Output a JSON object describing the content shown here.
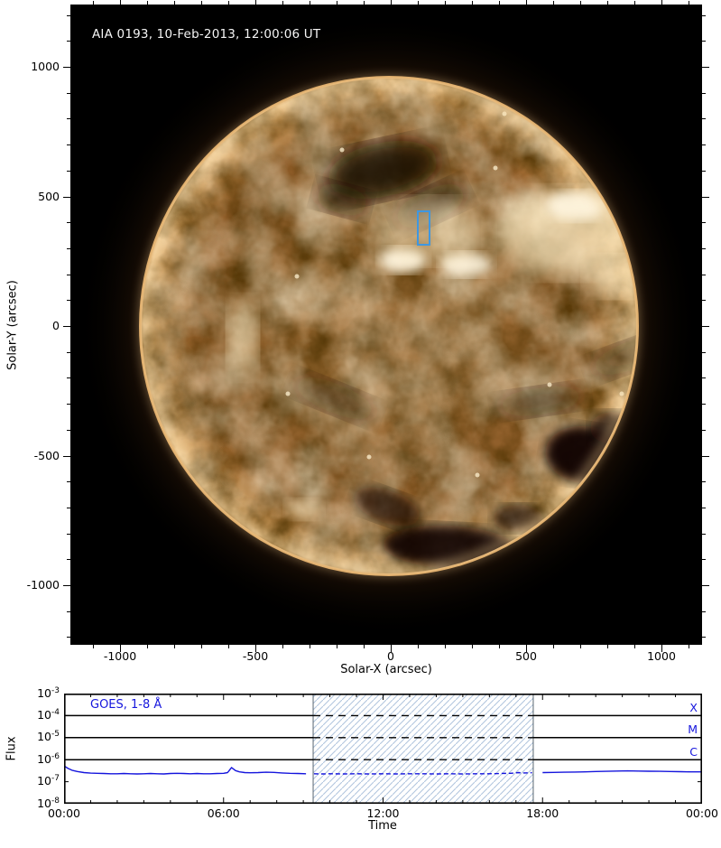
{
  "solar_map": {
    "title": "AIA 0193, 10-Feb-2013, 12:00:06 UT",
    "xlabel": "Solar-X (arcsec)",
    "ylabel": "Solar-Y (arcsec)",
    "x_ticks": [
      -1000,
      -500,
      0,
      500,
      1000
    ],
    "y_ticks": [
      1000,
      500,
      0,
      -500,
      -1000
    ],
    "minor_step_arcsec": 100,
    "x_range_arcsec": [
      -1183,
      1150
    ],
    "y_range_arcsec": [
      -1230,
      1241
    ],
    "annotation_box": {
      "color": "#3f97e0",
      "solar_x": [
        97,
        140
      ],
      "solar_y": [
        317,
        446
      ]
    },
    "palette": {
      "disk_mid": "#9a6a33",
      "limb_bright": "#eec88f",
      "coronal_hole": "#0a0502",
      "corona_glow": "#8a4d16",
      "background": "#000000",
      "title_text": "#f5f5f5"
    }
  },
  "goes": {
    "legend": "GOES, 1-8 Å",
    "ylabel": "Flux",
    "xlabel": "Time",
    "x_tick_labels": [
      "00:00",
      "06:00",
      "12:00",
      "18:00",
      "00:00"
    ],
    "x_tick_hours": [
      0,
      6,
      12,
      18,
      24
    ],
    "y_exponents": [
      -3,
      -4,
      -5,
      -6,
      -7,
      -8
    ],
    "flare_classes": [
      {
        "label": "X",
        "level": 0.0001
      },
      {
        "label": "M",
        "level": 1e-05
      },
      {
        "label": "C",
        "level": 1e-06
      }
    ],
    "hatch_hours": [
      9.37,
      17.65
    ],
    "colors": {
      "curve": "#1515dd",
      "labels": "#1515dd",
      "hatch_line": "#b2c6de",
      "hatch_edge": "#5a6672",
      "threshold_line": "#000000"
    }
  },
  "chart_data": [
    {
      "type": "heatmap",
      "title": "AIA 0193, 10-Feb-2013, 12:00:06 UT",
      "xlabel": "Solar-X (arcsec)",
      "ylabel": "Solar-Y (arcsec)",
      "xlim": [
        -1183,
        1150
      ],
      "ylim": [
        -1230,
        1241
      ],
      "description": "SDO/AIA 193 A full-disk solar image, gold/sepia colormap, disk radius ~960 arcsec, dark coronal holes north-center and south, bright active regions near disk center and north-west",
      "annotations": [
        {
          "type": "rect",
          "solar_x": [
            97,
            140
          ],
          "solar_y": [
            317,
            446
          ],
          "color": "#3f97e0"
        }
      ]
    },
    {
      "type": "line",
      "title": "",
      "xlabel": "Time",
      "ylabel": "Flux",
      "x_tick_labels": [
        "00:00",
        "06:00",
        "12:00",
        "18:00",
        "00:00"
      ],
      "ylog": true,
      "ylim": [
        1e-08,
        0.001
      ],
      "legend_position": "top-left",
      "grid": false,
      "threshold_lines": [
        0.0001,
        1e-05,
        1e-06
      ],
      "threshold_labels": [
        "X",
        "M",
        "C"
      ],
      "shaded_interval_hours": [
        9.37,
        17.65
      ],
      "series": [
        {
          "name": "GOES, 1-8 Å",
          "color": "#1515dd",
          "points": [
            [
              0,
              5.2e-07
            ],
            [
              0.15,
              4e-07
            ],
            [
              0.3,
              3.3e-07
            ],
            [
              0.5,
              2.9e-07
            ],
            [
              0.75,
              2.6e-07
            ],
            [
              1,
              2.45e-07
            ],
            [
              1.25,
              2.4e-07
            ],
            [
              1.5,
              2.35e-07
            ],
            [
              1.75,
              2.3e-07
            ],
            [
              2,
              2.3e-07
            ],
            [
              2.25,
              2.35e-07
            ],
            [
              2.5,
              2.3e-07
            ],
            [
              2.75,
              2.25e-07
            ],
            [
              3,
              2.3e-07
            ],
            [
              3.25,
              2.35e-07
            ],
            [
              3.5,
              2.3e-07
            ],
            [
              3.75,
              2.25e-07
            ],
            [
              4,
              2.35e-07
            ],
            [
              4.25,
              2.4e-07
            ],
            [
              4.5,
              2.35e-07
            ],
            [
              4.75,
              2.3e-07
            ],
            [
              5,
              2.35e-07
            ],
            [
              5.25,
              2.3e-07
            ],
            [
              5.5,
              2.3e-07
            ],
            [
              5.75,
              2.35e-07
            ],
            [
              6,
              2.4e-07
            ],
            [
              6.15,
              2.6e-07
            ],
            [
              6.3,
              4.4e-07
            ],
            [
              6.45,
              3.2e-07
            ],
            [
              6.6,
              2.8e-07
            ],
            [
              6.8,
              2.6e-07
            ],
            [
              7,
              2.55e-07
            ],
            [
              7.3,
              2.6e-07
            ],
            [
              7.6,
              2.7e-07
            ],
            [
              7.9,
              2.65e-07
            ],
            [
              8.2,
              2.5e-07
            ],
            [
              8.5,
              2.4e-07
            ],
            [
              8.8,
              2.35e-07
            ],
            [
              9.1,
              2.3e-07
            ],
            [
              9.4,
              2.3e-07
            ],
            [
              9.7,
              2.25e-07
            ],
            [
              10,
              2.3e-07
            ],
            [
              10.5,
              2.25e-07
            ],
            [
              11,
              2.3e-07
            ],
            [
              11.5,
              2.25e-07
            ],
            [
              12,
              2.3e-07
            ],
            [
              12.5,
              2.25e-07
            ],
            [
              13,
              2.3e-07
            ],
            [
              13.5,
              2.3e-07
            ],
            [
              14,
              2.25e-07
            ],
            [
              14.5,
              2.3e-07
            ],
            [
              15,
              2.25e-07
            ],
            [
              15.5,
              2.3e-07
            ],
            [
              16,
              2.3e-07
            ],
            [
              16.4,
              2.35e-07
            ],
            [
              16.8,
              2.4e-07
            ],
            [
              17.1,
              2.6e-07
            ],
            [
              17.3,
              2.5e-07
            ],
            [
              17.6,
              2.55e-07
            ],
            [
              18,
              2.6e-07
            ],
            [
              18.4,
              2.65e-07
            ],
            [
              18.8,
              2.7e-07
            ],
            [
              19.2,
              2.75e-07
            ],
            [
              19.6,
              2.8e-07
            ],
            [
              20,
              2.9e-07
            ],
            [
              20.4,
              2.95e-07
            ],
            [
              20.8,
              3.05e-07
            ],
            [
              21.2,
              3.1e-07
            ],
            [
              21.6,
              3.05e-07
            ],
            [
              22,
              3e-07
            ],
            [
              22.4,
              2.95e-07
            ],
            [
              22.8,
              2.9e-07
            ],
            [
              23.2,
              2.85e-07
            ],
            [
              23.6,
              2.8e-07
            ],
            [
              24,
              2.8e-07
            ]
          ]
        }
      ]
    }
  ]
}
